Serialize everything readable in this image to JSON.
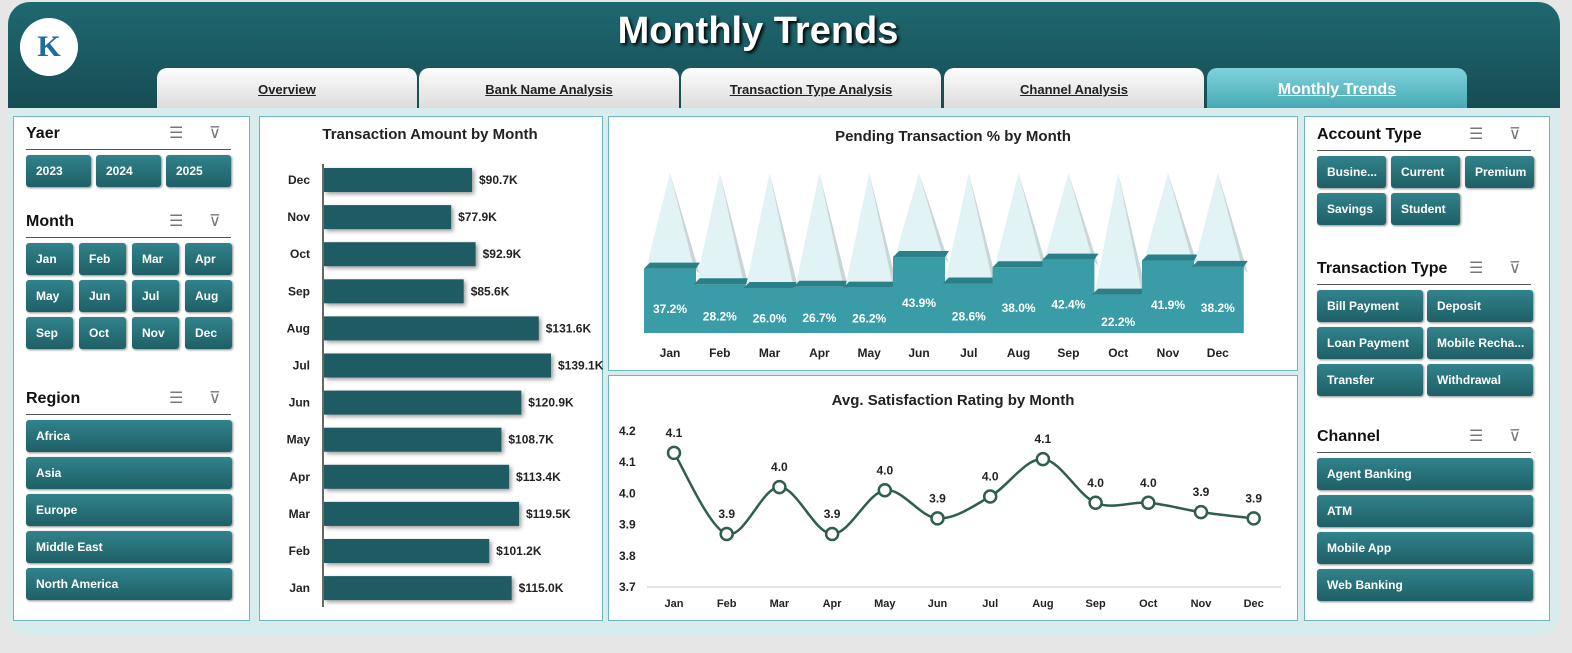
{
  "header": {
    "title": "Monthly Trends",
    "logo_text": "K"
  },
  "tabs": [
    {
      "label": "Overview"
    },
    {
      "label": "Bank Name Analysis"
    },
    {
      "label": "Transaction Type Analysis"
    },
    {
      "label": "Channel Analysis"
    },
    {
      "label": "Monthly Trends",
      "active": true
    }
  ],
  "slicers": {
    "year": {
      "title": "Yaer",
      "items": [
        "2023",
        "2024",
        "2025"
      ]
    },
    "month": {
      "title": "Month",
      "items": [
        "Jan",
        "Feb",
        "Mar",
        "Apr",
        "May",
        "Jun",
        "Jul",
        "Aug",
        "Sep",
        "Oct",
        "Nov",
        "Dec"
      ]
    },
    "region": {
      "title": "Region",
      "items": [
        "Africa",
        "Asia",
        "Europe",
        "Middle East",
        "North America"
      ]
    },
    "account_type": {
      "title": "Account Type",
      "items": [
        "Busine...",
        "Current",
        "Premium",
        "Savings",
        "Student"
      ]
    },
    "transaction_type": {
      "title": "Transaction Type",
      "items": [
        "Bill Payment",
        "Deposit",
        "Loan Payment",
        "Mobile Recha...",
        "Transfer",
        "Withdrawal"
      ]
    },
    "channel": {
      "title": "Channel",
      "items": [
        "Agent Banking",
        "ATM",
        "Mobile App",
        "Web Banking"
      ]
    }
  },
  "icons": {
    "multiselect": "multi-select-icon",
    "clear_filter": "clear-filter-icon"
  },
  "colors": {
    "accent": "#1f6870",
    "bar": "#1f5b62",
    "pending": "#3a9ca6",
    "line": "#2f5e4f"
  },
  "chart_data": [
    {
      "type": "bar",
      "title": "Transaction Amount by Month",
      "categories": [
        "Dec",
        "Nov",
        "Oct",
        "Sep",
        "Aug",
        "Jul",
        "Jun",
        "May",
        "Apr",
        "Mar",
        "Feb",
        "Jan"
      ],
      "values": [
        90.7,
        77.9,
        92.9,
        85.6,
        131.6,
        139.1,
        120.9,
        108.7,
        113.4,
        119.5,
        101.2,
        115.0
      ],
      "labels": [
        "$90.7K",
        "$77.9K",
        "$92.9K",
        "$85.6K",
        "$131.6K",
        "$139.1K",
        "$120.9K",
        "$108.7K",
        "$113.4K",
        "$119.5K",
        "$101.2K",
        "$115.0K"
      ],
      "unit": "$K"
    },
    {
      "type": "bar",
      "title": "Pending Transaction % by Month",
      "categories": [
        "Jan",
        "Feb",
        "Mar",
        "Apr",
        "May",
        "Jun",
        "Jul",
        "Aug",
        "Sep",
        "Oct",
        "Nov",
        "Dec"
      ],
      "values": [
        37.2,
        28.2,
        26.0,
        26.7,
        26.2,
        43.9,
        28.6,
        38.0,
        42.4,
        22.2,
        41.9,
        38.2
      ],
      "labels": [
        "37.2%",
        "28.2%",
        "26.0%",
        "26.7%",
        "26.2%",
        "43.9%",
        "28.6%",
        "38.0%",
        "42.4%",
        "22.2%",
        "41.9%",
        "38.2%"
      ]
    },
    {
      "type": "line",
      "title": "Avg. Satisfaction Rating by Month",
      "categories": [
        "Jan",
        "Feb",
        "Mar",
        "Apr",
        "May",
        "Jun",
        "Jul",
        "Aug",
        "Sep",
        "Oct",
        "Nov",
        "Dec"
      ],
      "values": [
        4.13,
        3.87,
        4.02,
        3.87,
        4.01,
        3.92,
        3.99,
        4.11,
        3.97,
        3.97,
        3.94,
        3.92
      ],
      "labels": [
        "4.1",
        "3.9",
        "4.0",
        "3.9",
        "4.0",
        "3.9",
        "4.0",
        "4.1",
        "4.0",
        "4.0",
        "3.9",
        "3.9"
      ],
      "ylim": [
        3.7,
        4.2
      ],
      "yticks": [
        "4.2",
        "4.1",
        "4.0",
        "3.9",
        "3.8",
        "3.7"
      ]
    }
  ]
}
